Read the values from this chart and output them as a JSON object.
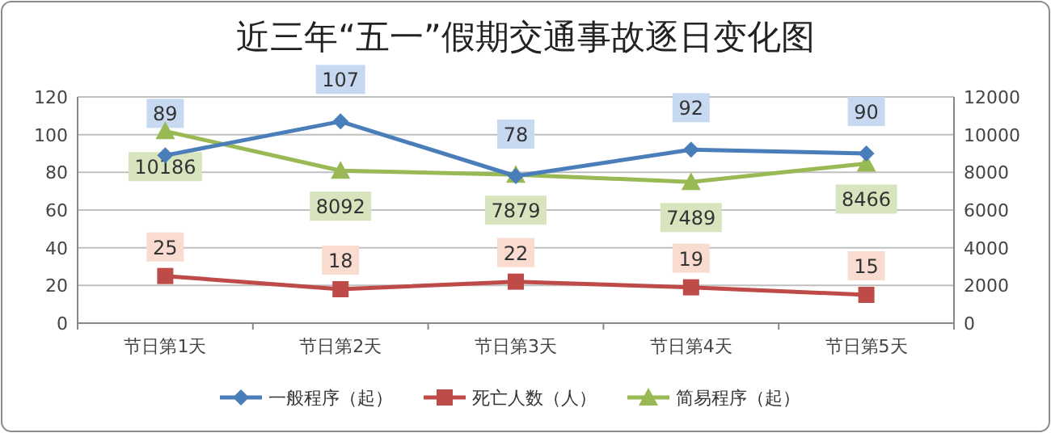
{
  "chart_data": {
    "type": "line",
    "title": "近三年“五一”假期交通事故逐日变化图",
    "categories": [
      "节日第1天",
      "节日第2天",
      "节日第3天",
      "节日第4天",
      "节日第5天"
    ],
    "series": [
      {
        "name": "一般程序（起）",
        "color": "#4a7ebb",
        "marker": "diamond",
        "values": [
          89,
          107,
          78,
          92,
          90
        ]
      },
      {
        "name": "死亡人数（人）",
        "color": "#be4b48",
        "marker": "square",
        "values": [
          25,
          18,
          22,
          19,
          15
        ]
      },
      {
        "name": "简易程序（起）",
        "color": "#98b954",
        "marker": "triangle",
        "axis": "y2",
        "values": [
          10186,
          8092,
          7879,
          7489,
          8466
        ]
      }
    ],
    "ylim": [
      0,
      120
    ],
    "yticks": [
      0,
      20,
      40,
      60,
      80,
      100,
      120
    ],
    "y2lim": [
      0,
      12000
    ],
    "y2ticks": [
      0,
      2000,
      4000,
      6000,
      8000,
      10000,
      12000
    ],
    "grid": "y",
    "legend": "bottom",
    "data_labels": true
  }
}
